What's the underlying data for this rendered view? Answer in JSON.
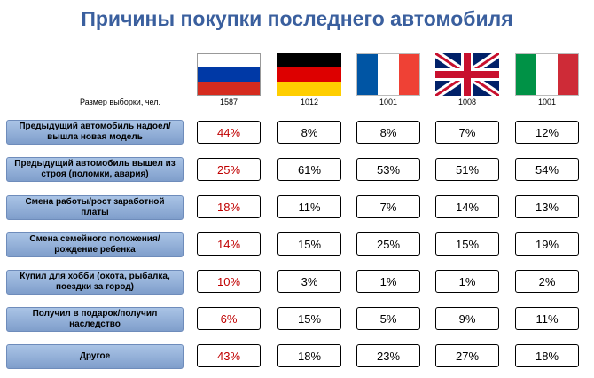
{
  "title": "Причины покупки последнего автомобиля",
  "sample_label": "Размер выборки, чел.",
  "countries": [
    {
      "flag": "russia-flag",
      "sample": "1587"
    },
    {
      "flag": "germany-flag",
      "sample": "1012"
    },
    {
      "flag": "france-flag",
      "sample": "1001"
    },
    {
      "flag": "uk-flag",
      "sample": "1008"
    },
    {
      "flag": "italy-flag",
      "sample": "1001"
    }
  ],
  "colors": {
    "title": "#3a5f9e",
    "russia_values": "#c00000",
    "label_fill": "#8fabd6"
  },
  "chart_data": {
    "type": "table",
    "title": "Причины покупки последнего автомобиля",
    "columns": [
      "1587",
      "1012",
      "1001",
      "1008",
      "1001"
    ],
    "rows": [
      {
        "label": "Предыдущий автомобиль надоел/ вышла новая модель",
        "values": [
          "44%",
          "8%",
          "8%",
          "7%",
          "12%"
        ]
      },
      {
        "label": "Предыдущий автомобиль вышел из строя (поломки, авария)",
        "values": [
          "25%",
          "61%",
          "53%",
          "51%",
          "54%"
        ]
      },
      {
        "label": "Смена работы/рост заработной платы",
        "values": [
          "18%",
          "11%",
          "7%",
          "14%",
          "13%"
        ]
      },
      {
        "label": "Смена семейного положения/ рождение ребенка",
        "values": [
          "14%",
          "15%",
          "25%",
          "15%",
          "19%"
        ]
      },
      {
        "label": "Купил для хобби (охота, рыбалка, поездки за город)",
        "values": [
          "10%",
          "3%",
          "1%",
          "1%",
          "2%"
        ]
      },
      {
        "label": "Получил в подарок/получил наследство",
        "values": [
          "6%",
          "15%",
          "5%",
          "9%",
          "11%"
        ]
      },
      {
        "label": "Другое",
        "values": [
          "43%",
          "18%",
          "23%",
          "27%",
          "18%"
        ]
      }
    ]
  }
}
